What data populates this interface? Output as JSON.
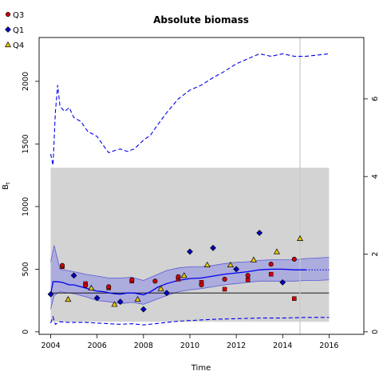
{
  "chart_data": {
    "type": "scatter",
    "title": "Absolute biomass",
    "xlabel": "Time",
    "ylabel": "B",
    "ylabel_subscript": "t",
    "xlim": [
      2003.5,
      2017.5
    ],
    "ylim": [
      -20,
      2350
    ],
    "xticks": [
      2004,
      2006,
      2008,
      2010,
      2012,
      2014,
      2016
    ],
    "yticks": [
      0,
      500,
      1000,
      1500,
      2000
    ],
    "y2ticks": [
      0,
      2,
      4,
      6
    ],
    "y2_scale_per_unit": 310,
    "grid": false,
    "legend_position": "top-left",
    "legend": [
      {
        "name": "Q3",
        "shape": "circle",
        "color": "#d40000"
      },
      {
        "name": "Q1",
        "shape": "diamond",
        "color": "#0000cc"
      },
      {
        "name": "Q4",
        "shape": "triangle",
        "color": "#e8c800"
      }
    ],
    "shaded_region": {
      "x": [
        2004,
        2016
      ],
      "y": [
        80,
        1310
      ],
      "color": "#d3d3d3"
    },
    "vertical_line": {
      "x": 2014.75,
      "color": "#c8c8c8"
    },
    "reference_line": {
      "y": 310,
      "color": "#000000"
    },
    "ci_band": {
      "x": [
        2004.0,
        2004.15,
        2004.4,
        2005.0,
        2005.5,
        2006.0,
        2006.5,
        2007.0,
        2007.5,
        2008.0,
        2008.5,
        2009.0,
        2009.5,
        2010.0,
        2010.5,
        2011.0,
        2011.5,
        2012.0,
        2012.5,
        2013.0,
        2013.5,
        2014.0,
        2014.5,
        2015.0,
        2015.5,
        2016.0
      ],
      "lower": [
        180,
        290,
        320,
        305,
        280,
        250,
        240,
        225,
        235,
        220,
        255,
        290,
        320,
        335,
        345,
        360,
        375,
        385,
        395,
        405,
        405,
        405,
        405,
        410,
        410,
        415
      ],
      "upper": [
        560,
        690,
        500,
        480,
        460,
        445,
        430,
        430,
        435,
        410,
        450,
        490,
        510,
        520,
        520,
        530,
        545,
        555,
        560,
        570,
        575,
        575,
        575,
        585,
        590,
        595
      ]
    },
    "series": [
      {
        "name": "",
        "style": "solid",
        "color": "#0000ee",
        "x": [
          2004.0,
          2004.1,
          2004.3,
          2004.5,
          2004.8,
          2005.0,
          2005.3,
          2005.6,
          2006.0,
          2006.3,
          2006.7,
          2007.0,
          2007.3,
          2007.6,
          2008.0,
          2008.3,
          2008.6,
          2009.0,
          2009.5,
          2010.0,
          2010.5,
          2011.0,
          2011.5,
          2012.0,
          2012.5,
          2013.0,
          2013.5,
          2014.0,
          2014.5,
          2015.0
        ],
        "y": [
          300,
          400,
          400,
          395,
          375,
          375,
          360,
          345,
          325,
          320,
          305,
          300,
          310,
          310,
          295,
          320,
          355,
          385,
          410,
          425,
          430,
          445,
          460,
          470,
          480,
          495,
          500,
          500,
          495,
          495
        ]
      },
      {
        "name": "",
        "style": "dotted",
        "color": "#0000ee",
        "x": [
          2015.0,
          2015.5,
          2016.0
        ],
        "y": [
          495,
          495,
          495
        ]
      },
      {
        "name": "",
        "style": "dashed",
        "color": "#0000ee",
        "x": [
          2004.0,
          2004.1,
          2004.2,
          2004.3,
          2004.4,
          2004.6,
          2004.8,
          2005.0,
          2005.3,
          2005.6,
          2006.0,
          2006.3,
          2006.5,
          2006.8,
          2007.0,
          2007.3,
          2007.6,
          2008.0,
          2008.3,
          2008.6,
          2009.0,
          2009.5,
          2010.0,
          2010.5,
          2011.0,
          2011.5,
          2012.0,
          2012.5,
          2013.0,
          2013.5,
          2014.0,
          2014.5,
          2015.0,
          2015.5,
          2016.0
        ],
        "y": [
          1420,
          1330,
          1750,
          1970,
          1800,
          1760,
          1790,
          1710,
          1680,
          1600,
          1560,
          1480,
          1430,
          1450,
          1460,
          1440,
          1460,
          1530,
          1570,
          1650,
          1750,
          1860,
          1930,
          1970,
          2030,
          2080,
          2140,
          2180,
          2220,
          2200,
          2220,
          2200,
          2200,
          2210,
          2220
        ]
      },
      {
        "name": "",
        "style": "dashed",
        "color": "#0000ee",
        "x": [
          2004.0,
          2004.1,
          2004.2,
          2004.4,
          2004.8,
          2005.5,
          2006.0,
          2006.5,
          2007.0,
          2007.5,
          2008.0,
          2008.5,
          2009.0,
          2009.5,
          2010.0,
          2011.0,
          2012.0,
          2013.0,
          2014.0,
          2015.0,
          2016.0
        ],
        "y": [
          70,
          120,
          60,
          80,
          75,
          75,
          70,
          65,
          60,
          65,
          55,
          65,
          75,
          85,
          90,
          100,
          105,
          110,
          110,
          115,
          115
        ]
      }
    ],
    "points": {
      "Q3": {
        "x": [
          2004.5,
          2005.5,
          2006.5,
          2007.5,
          2008.5,
          2009.5,
          2010.5,
          2011.5,
          2012.5,
          2013.5,
          2014.5
        ],
        "y": [
          530,
          370,
          360,
          415,
          405,
          440,
          375,
          420,
          450,
          540,
          580
        ]
      },
      "Q1": {
        "x": [
          2004.0,
          2005.0,
          2006.0,
          2007.0,
          2008.0,
          2009.0,
          2010.0,
          2011.0,
          2012.0,
          2013.0,
          2014.0
        ],
        "y": [
          300,
          450,
          270,
          240,
          180,
          310,
          640,
          670,
          500,
          790,
          395
        ]
      },
      "Q4": {
        "x": [
          2004.75,
          2005.75,
          2006.75,
          2007.75,
          2008.75,
          2009.75,
          2010.75,
          2011.75,
          2012.75,
          2013.75,
          2014.75
        ],
        "y": [
          260,
          350,
          220,
          260,
          345,
          450,
          535,
          535,
          575,
          640,
          745
        ]
      },
      "Q3_extra": {
        "x": [
          2004.5,
          2005.5,
          2006.5,
          2007.5,
          2009.5,
          2010.5,
          2011.5,
          2012.5,
          2013.5,
          2014.5
        ],
        "y": [
          520,
          385,
          350,
          405,
          420,
          395,
          340,
          415,
          460,
          265
        ]
      }
    }
  }
}
